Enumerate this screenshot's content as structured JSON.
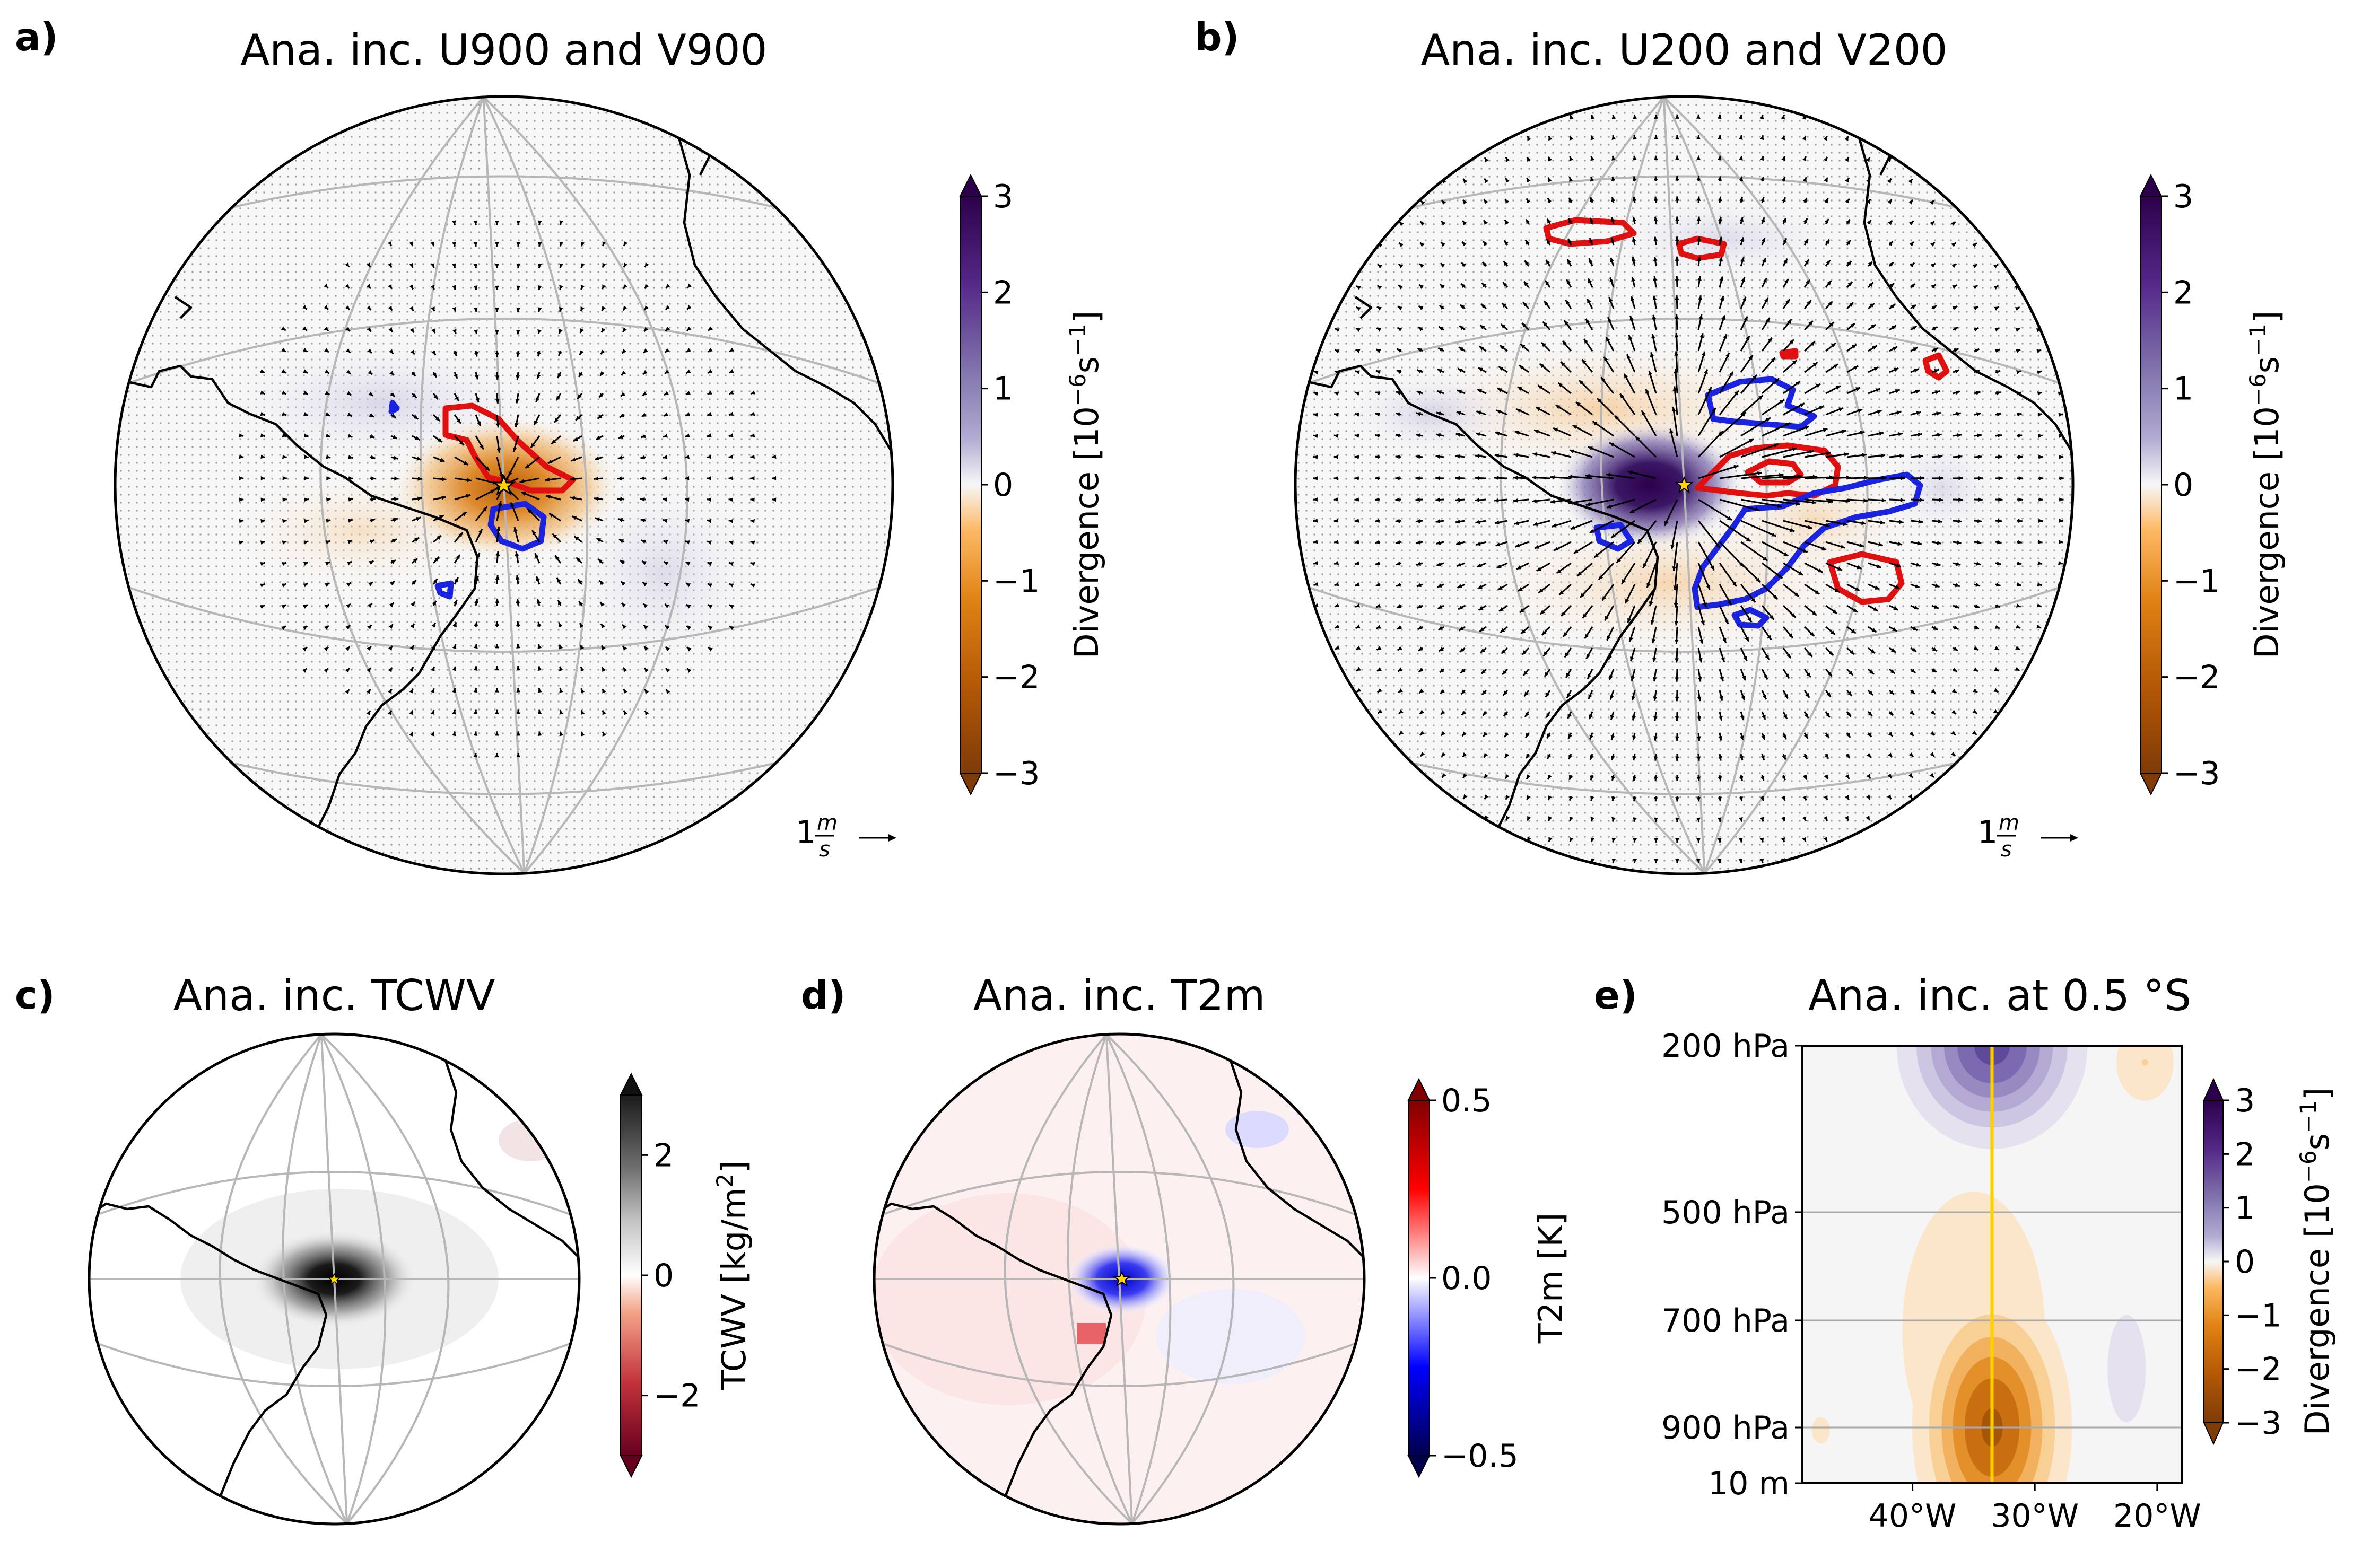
{
  "panels": {
    "a": {
      "label": "a)",
      "title": "Ana. inc. U900 and V900",
      "quiver_key": "1",
      "quiver_unit_num": "m",
      "quiver_unit_den": "s"
    },
    "b": {
      "label": "b)",
      "title": "Ana. inc. U200 and V200",
      "quiver_key": "1",
      "quiver_unit_num": "m",
      "quiver_unit_den": "s"
    },
    "c": {
      "label": "c)",
      "title": "Ana. inc. TCWV"
    },
    "d": {
      "label": "d)",
      "title": "Ana. inc. T2m"
    },
    "e": {
      "label": "e)",
      "title": "Ana. inc. at 0.5 °S"
    }
  },
  "colorbars": {
    "div_a": {
      "label_main": "Divergence [10",
      "label_exp": "−6",
      "label_unit": "s",
      "label_unit_exp": "−1",
      "label_tail": "]",
      "ticks": [
        "3",
        "2",
        "1",
        "0",
        "−1",
        "−2",
        "−3"
      ]
    },
    "div_b": {
      "label_main": "Divergence [10",
      "label_exp": "−6",
      "label_unit": "s",
      "label_unit_exp": "−1",
      "label_tail": "]",
      "ticks": [
        "3",
        "2",
        "1",
        "0",
        "−1",
        "−2",
        "−3"
      ]
    },
    "tcwv": {
      "label": "TCWV [kg/m",
      "label_exp": "2",
      "label_tail": "]",
      "ticks": [
        "2",
        "0",
        "−2"
      ]
    },
    "t2m": {
      "label": "T2m [K]",
      "ticks": [
        "0.5",
        "0.0",
        "−0.5"
      ]
    },
    "div_e": {
      "label_main": "Divergence [10",
      "label_exp": "−6",
      "label_unit": "s",
      "label_unit_exp": "−1",
      "label_tail": "]",
      "ticks": [
        "3",
        "2",
        "1",
        "0",
        "−1",
        "−2",
        "−3"
      ]
    }
  },
  "colors": {
    "div_pos": "#2d004b",
    "div_neg": "#7f3b08",
    "positive_contour": "#e01010",
    "negative_contour": "#1a24e0",
    "tcwv_pos": "#000000",
    "tcwv_neg": "#67001f",
    "t2m_pos": "#800000",
    "t2m_neg": "#000080",
    "marker_line": "#ffd000"
  },
  "chart_data": [
    {
      "type": "heatmap",
      "panel": "a",
      "title": "Ana. inc. U900 and V900",
      "field": "Divergence",
      "units": "10^-6 s^-1",
      "range": [
        -3,
        3
      ],
      "description_values": {
        "convergence_center": -2.5
      }
    },
    {
      "type": "heatmap",
      "panel": "b",
      "title": "Ana. inc. U200 and V200",
      "field": "Divergence",
      "units": "10^-6 s^-1",
      "range": [
        -3,
        3
      ],
      "description_values": {
        "divergence_center": 3.0
      }
    },
    {
      "type": "heatmap",
      "panel": "c",
      "title": "Ana. inc. TCWV",
      "field": "TCWV",
      "units": "kg/m^2",
      "range": [
        -3,
        3
      ],
      "description_values": {
        "center": 3.0
      }
    },
    {
      "type": "heatmap",
      "panel": "d",
      "title": "Ana. inc. T2m",
      "field": "T2m",
      "units": "K",
      "range": [
        -0.5,
        0.5
      ],
      "description_values": {
        "center": -0.45
      }
    },
    {
      "type": "heatmap",
      "panel": "e",
      "title": "Ana. inc. at 0.5 °S",
      "field": "Divergence",
      "units": "10^-6 s^-1",
      "x_ticks": [
        "40°W",
        "30°W",
        "20°W"
      ],
      "x_tick_values": [
        -40,
        -30,
        -20
      ],
      "xlim": [
        -49,
        -18
      ],
      "y_ticks": [
        "200 hPa",
        "500 hPa",
        "700 hPa",
        "900 hPa",
        "10 m"
      ],
      "y_tick_values": [
        200,
        500,
        700,
        900,
        1000
      ],
      "vertical_line_lon": -33.5,
      "blobs": [
        {
          "lon": -33.5,
          "level": 200,
          "peak": 3.2,
          "lon_spread": 4.5,
          "level_spread": 230
        },
        {
          "lon": -33.5,
          "level": 900,
          "peak": -3.1,
          "lon_spread": 3.8,
          "level_spread": 230
        },
        {
          "lon": -35.0,
          "level": 720,
          "peak": -1.0,
          "lon_spread": 5.5,
          "level_spread": 260
        },
        {
          "lon": -22.5,
          "level": 790,
          "peak": 0.9,
          "lon_spread": 1.6,
          "level_spread": 110
        },
        {
          "lon": -21.0,
          "level": 230,
          "peak": -1.0,
          "lon_spread": 2.2,
          "level_spread": 110
        },
        {
          "lon": -47.5,
          "level": 905,
          "peak": -0.7,
          "lon_spread": 1.0,
          "level_spread": 35
        }
      ]
    }
  ]
}
